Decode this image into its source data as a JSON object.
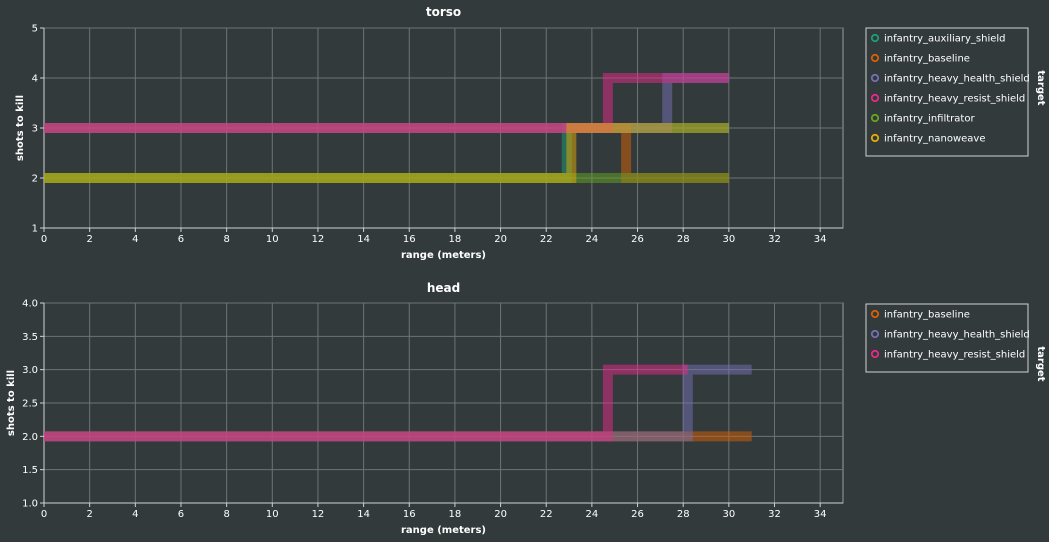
{
  "chart_data": [
    {
      "type": "line",
      "title": "torso",
      "xlabel": "range (meters)",
      "ylabel": "shots to kill",
      "xlim": [
        0,
        35
      ],
      "ylim": [
        1,
        5
      ],
      "xticks": [
        0,
        2,
        4,
        6,
        8,
        10,
        12,
        14,
        16,
        18,
        20,
        22,
        24,
        26,
        28,
        30,
        32,
        34
      ],
      "yticks": [
        1,
        2,
        3,
        4,
        5
      ],
      "grid": true,
      "legend_title": "target",
      "legend_placement": "right",
      "step": "after",
      "series": [
        {
          "name": "infantry_auxiliary_shield",
          "color": "#1b9e77",
          "x": [
            0,
            22.9,
            30
          ],
          "y": [
            2,
            3,
            3
          ]
        },
        {
          "name": "infantry_baseline",
          "color": "#d95f02",
          "x": [
            0,
            25.5,
            30
          ],
          "y": [
            3,
            2,
            2
          ]
        },
        {
          "name": "infantry_heavy_health_shield",
          "color": "#7570b3",
          "x": [
            0,
            27.3,
            30
          ],
          "y": [
            3,
            4,
            4
          ]
        },
        {
          "name": "infantry_heavy_resist_shield",
          "color": "#e7298a",
          "x": [
            0,
            24.7,
            30
          ],
          "y": [
            3,
            4,
            4
          ]
        },
        {
          "name": "infantry_infiltrator",
          "color": "#66a61e",
          "x": [
            0,
            30
          ],
          "y": [
            2,
            2
          ]
        },
        {
          "name": "infantry_nanoweave",
          "color": "#e6ab02",
          "x": [
            0,
            23.1,
            30
          ],
          "y": [
            2,
            3,
            3
          ]
        }
      ]
    },
    {
      "type": "line",
      "title": "head",
      "xlabel": "range (meters)",
      "ylabel": "shots to kill",
      "xlim": [
        0,
        35
      ],
      "ylim": [
        1,
        4
      ],
      "xticks": [
        0,
        2,
        4,
        6,
        8,
        10,
        12,
        14,
        16,
        18,
        20,
        22,
        24,
        26,
        28,
        30,
        32,
        34
      ],
      "yticks": [
        "1.0",
        "1.5",
        "2.0",
        "2.5",
        "3.0",
        "3.5",
        "4.0"
      ],
      "grid": true,
      "legend_title": "target",
      "legend_placement": "right",
      "step": "after",
      "series": [
        {
          "name": "infantry_baseline",
          "color": "#d95f02",
          "x": [
            0,
            31
          ],
          "y": [
            2,
            2
          ]
        },
        {
          "name": "infantry_heavy_health_shield",
          "color": "#7570b3",
          "x": [
            0,
            28.2,
            31
          ],
          "y": [
            2,
            3,
            3
          ]
        },
        {
          "name": "infantry_heavy_resist_shield",
          "color": "#e7298a",
          "x": [
            0,
            24.7,
            28.2
          ],
          "y": [
            2,
            3,
            3
          ]
        }
      ]
    }
  ]
}
